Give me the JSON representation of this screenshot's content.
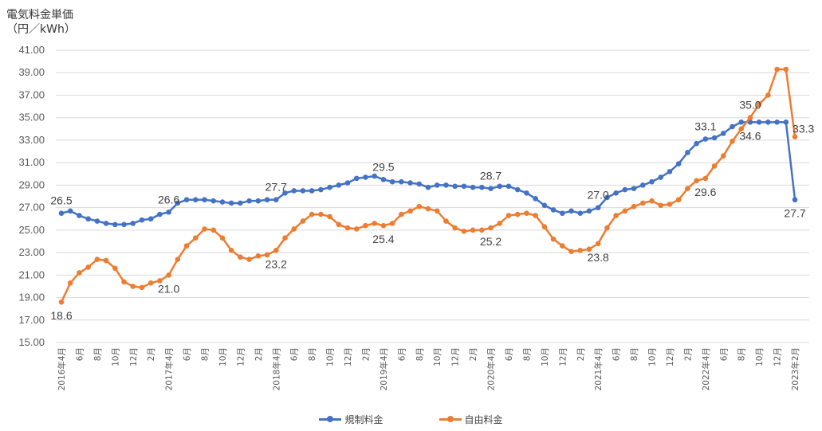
{
  "chart_data": {
    "type": "line",
    "title": "電気料金単価",
    "ylabel": "（円／kWh）",
    "ylim": [
      15,
      41
    ],
    "yticks": [
      "15.00",
      "17.00",
      "19.00",
      "21.00",
      "23.00",
      "25.00",
      "27.00",
      "29.00",
      "31.00",
      "33.00",
      "35.00",
      "37.00",
      "39.00",
      "41.00"
    ],
    "grid": true,
    "legend_position": "bottom",
    "x_tick_labels": [
      "2016年4月",
      "6月",
      "8月",
      "10月",
      "12月",
      "2月",
      "2017年4月",
      "6月",
      "8月",
      "10月",
      "12月",
      "2月",
      "2018年4月",
      "6月",
      "8月",
      "10月",
      "12月",
      "2月",
      "2019年4月",
      "6月",
      "8月",
      "10月",
      "12月",
      "2月",
      "2020年4月",
      "6月",
      "8月",
      "10月",
      "12月",
      "2月",
      "2021年4月",
      "6月",
      "8月",
      "10月",
      "12月",
      "2月",
      "2022年4月",
      "6月",
      "8月",
      "10月",
      "12月",
      "2023年2月"
    ],
    "series": [
      {
        "name": "規制料金",
        "color": "#4472C4",
        "values": [
          26.5,
          26.7,
          26.3,
          26.0,
          25.8,
          25.6,
          25.5,
          25.5,
          25.6,
          25.9,
          26.0,
          26.4,
          26.6,
          27.4,
          27.7,
          27.7,
          27.7,
          27.6,
          27.5,
          27.4,
          27.4,
          27.6,
          27.6,
          27.7,
          27.7,
          28.3,
          28.5,
          28.5,
          28.5,
          28.6,
          28.8,
          29.0,
          29.2,
          29.6,
          29.7,
          29.8,
          29.5,
          29.3,
          29.3,
          29.2,
          29.1,
          28.8,
          29.0,
          29.0,
          28.9,
          28.9,
          28.8,
          28.8,
          28.7,
          28.9,
          28.9,
          28.6,
          28.3,
          27.8,
          27.2,
          26.8,
          26.5,
          26.7,
          26.5,
          26.7,
          27.0,
          27.9,
          28.3,
          28.6,
          28.7,
          29.0,
          29.3,
          29.7,
          30.2,
          30.9,
          31.9,
          32.7,
          33.1,
          33.2,
          33.6,
          34.2,
          34.6,
          34.6,
          34.6,
          34.6,
          34.6,
          34.6,
          27.7
        ],
        "data_labels": [
          {
            "index": 0,
            "text": "26.5",
            "pos": "above"
          },
          {
            "index": 12,
            "text": "26.6",
            "pos": "above"
          },
          {
            "index": 24,
            "text": "27.7",
            "pos": "above"
          },
          {
            "index": 36,
            "text": "29.5",
            "pos": "above"
          },
          {
            "index": 48,
            "text": "28.7",
            "pos": "above"
          },
          {
            "index": 60,
            "text": "27.0",
            "pos": "above"
          },
          {
            "index": 72,
            "text": "33.1",
            "pos": "above"
          },
          {
            "index": 77,
            "text": "34.6",
            "pos": "below"
          },
          {
            "index": 82,
            "text": "27.7",
            "pos": "below"
          }
        ]
      },
      {
        "name": "自由料金",
        "color": "#ED7D31",
        "values": [
          18.6,
          20.3,
          21.2,
          21.7,
          22.4,
          22.3,
          21.6,
          20.4,
          20.0,
          19.9,
          20.3,
          20.5,
          21.0,
          22.4,
          23.6,
          24.3,
          25.1,
          25.0,
          24.3,
          23.2,
          22.6,
          22.4,
          22.7,
          22.8,
          23.2,
          24.3,
          25.1,
          25.8,
          26.4,
          26.4,
          26.2,
          25.5,
          25.2,
          25.1,
          25.4,
          25.6,
          25.4,
          25.6,
          26.4,
          26.7,
          27.1,
          26.9,
          26.7,
          25.8,
          25.2,
          24.9,
          25.0,
          25.0,
          25.2,
          25.6,
          26.3,
          26.4,
          26.5,
          26.3,
          25.3,
          24.2,
          23.6,
          23.1,
          23.2,
          23.3,
          23.8,
          25.2,
          26.3,
          26.7,
          27.1,
          27.4,
          27.6,
          27.2,
          27.3,
          27.7,
          28.7,
          29.4,
          29.6,
          30.7,
          31.6,
          32.9,
          34.0,
          35.0,
          36.2,
          37.0,
          39.3,
          39.3,
          33.3
        ],
        "data_labels": [
          {
            "index": 0,
            "text": "18.6",
            "pos": "below"
          },
          {
            "index": 12,
            "text": "21.0",
            "pos": "below"
          },
          {
            "index": 24,
            "text": "23.2",
            "pos": "below"
          },
          {
            "index": 36,
            "text": "25.4",
            "pos": "below"
          },
          {
            "index": 48,
            "text": "25.2",
            "pos": "below"
          },
          {
            "index": 60,
            "text": "23.8",
            "pos": "below"
          },
          {
            "index": 72,
            "text": "29.6",
            "pos": "below"
          },
          {
            "index": 77,
            "text": "35.0",
            "pos": "above"
          },
          {
            "index": 82,
            "text": "33.3",
            "pos": "right"
          }
        ]
      }
    ]
  }
}
